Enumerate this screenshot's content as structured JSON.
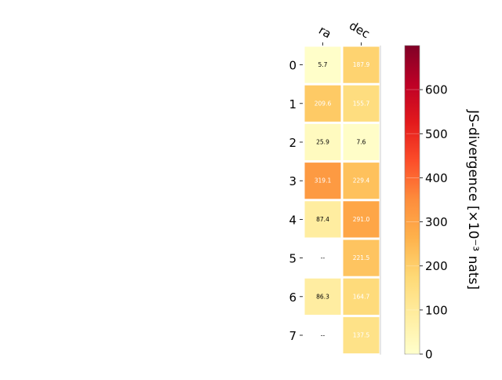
{
  "chart_data": {
    "type": "heatmap",
    "columns": [
      "ra",
      "dec"
    ],
    "rows": [
      "0",
      "1",
      "2",
      "3",
      "4",
      "5",
      "6",
      "7"
    ],
    "values": [
      [
        5.7,
        187.9
      ],
      [
        209.6,
        155.7
      ],
      [
        25.9,
        7.6
      ],
      [
        319.1,
        229.4
      ],
      [
        87.4,
        291.0
      ],
      [
        null,
        221.5
      ],
      [
        86.3,
        164.7
      ],
      [
        null,
        137.5
      ]
    ],
    "cell_labels": [
      [
        "5.7",
        "187.9"
      ],
      [
        "209.6",
        "155.7"
      ],
      [
        "25.9",
        "7.6"
      ],
      [
        "319.1",
        "229.4"
      ],
      [
        "87.4",
        "291.0"
      ],
      [
        "--",
        "221.5"
      ],
      [
        "86.3",
        "164.7"
      ],
      [
        "--",
        "137.5"
      ]
    ],
    "colorbar": {
      "label": "JS-divergence [×10⁻³ nats]",
      "range": [
        0,
        700
      ],
      "ticks": [
        "0",
        "100",
        "200",
        "300",
        "400",
        "500",
        "600"
      ],
      "colormap": "YlOrRd"
    },
    "grid": false
  }
}
